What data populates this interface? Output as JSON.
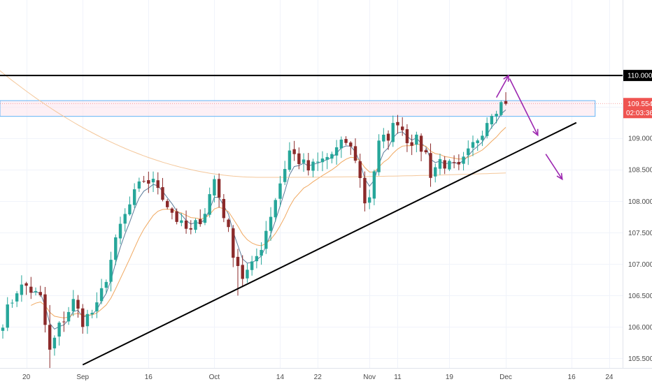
{
  "chart_data": {
    "type": "candlestick",
    "title": "",
    "colors": {
      "up": "#26a69a",
      "down": "#8b2a2a",
      "ema_fast": "#5b7b9a",
      "ema_slow": "#f0a860",
      "ma_long": "#f4c79a",
      "trend": "#000000",
      "arrow": "#9c27b0",
      "zone_border": "#64b5f6",
      "zone_fill": "#fce4ec",
      "price_tag": "#ef5350"
    },
    "y_axis": {
      "ylim": [
        105.35,
        111.2
      ],
      "ticks": [
        "105.500",
        "106.000",
        "106.500",
        "107.000",
        "107.500",
        "108.000",
        "108.500",
        "109.000",
        "109.500",
        "110.000"
      ]
    },
    "x_axis": {
      "tick_labels": [
        {
          "label": "20",
          "bar": 5
        },
        {
          "label": "Sep",
          "bar": 17
        },
        {
          "label": "16",
          "bar": 31
        },
        {
          "label": "Oct",
          "bar": 45
        },
        {
          "label": "14",
          "bar": 59
        },
        {
          "label": "22",
          "bar": 67
        },
        {
          "label": "Nov",
          "bar": 78
        },
        {
          "label": "11",
          "bar": 84
        },
        {
          "label": "19",
          "bar": 95
        },
        {
          "label": "Dec",
          "bar": 107
        },
        {
          "label": "16",
          "bar": 121
        },
        {
          "label": "24",
          "bar": 129
        }
      ]
    },
    "anchors": [
      [
        0,
        106.1
      ],
      [
        3,
        106.6
      ],
      [
        5,
        106.65
      ],
      [
        8,
        106.45
      ],
      [
        10,
        105.6
      ],
      [
        12,
        106.0
      ],
      [
        15,
        106.4
      ],
      [
        17,
        106.1
      ],
      [
        20,
        106.3
      ],
      [
        22,
        106.8
      ],
      [
        25,
        107.6
      ],
      [
        28,
        108.1
      ],
      [
        30,
        108.35
      ],
      [
        33,
        108.25
      ],
      [
        35,
        107.95
      ],
      [
        38,
        107.6
      ],
      [
        40,
        107.5
      ],
      [
        43,
        107.85
      ],
      [
        45,
        108.35
      ],
      [
        47,
        107.8
      ],
      [
        49,
        107.2
      ],
      [
        51,
        106.8
      ],
      [
        53,
        106.95
      ],
      [
        55,
        107.3
      ],
      [
        57,
        107.8
      ],
      [
        59,
        108.3
      ],
      [
        61,
        108.8
      ],
      [
        63,
        108.65
      ],
      [
        65,
        108.5
      ],
      [
        67,
        108.6
      ],
      [
        70,
        108.75
      ],
      [
        73,
        108.95
      ],
      [
        75,
        108.7
      ],
      [
        77,
        108.0
      ],
      [
        78,
        108.1
      ],
      [
        80,
        108.9
      ],
      [
        82,
        109.05
      ],
      [
        84,
        109.3
      ],
      [
        86,
        109.0
      ],
      [
        88,
        108.95
      ],
      [
        90,
        108.75
      ],
      [
        91,
        108.45
      ],
      [
        93,
        108.65
      ],
      [
        95,
        108.55
      ],
      [
        97,
        108.5
      ],
      [
        99,
        108.75
      ],
      [
        102,
        109.15
      ],
      [
        104,
        109.45
      ],
      [
        106,
        109.55
      ],
      [
        107,
        109.55
      ]
    ],
    "resistance_level": 110.0,
    "current_price": "109.554",
    "countdown": "02:03:36",
    "zone": {
      "low": 109.35,
      "high": 109.6,
      "end_bar": 126
    },
    "trendline": {
      "from": {
        "bar": 17,
        "price": 105.4
      },
      "to": {
        "bar": 122,
        "price": 109.25
      }
    },
    "ma_long": {
      "start": 110.1,
      "min": 108.38,
      "min_bar": 55,
      "end": 108.45
    },
    "arrows": [
      {
        "from": [
          105,
          109.65
        ],
        "to": [
          107.6,
          110.0
        ]
      },
      {
        "from": [
          107.8,
          109.95
        ],
        "to": [
          113.8,
          109.05
        ]
      },
      {
        "from": [
          115.5,
          108.75
        ],
        "to": [
          119,
          108.35
        ]
      }
    ]
  }
}
